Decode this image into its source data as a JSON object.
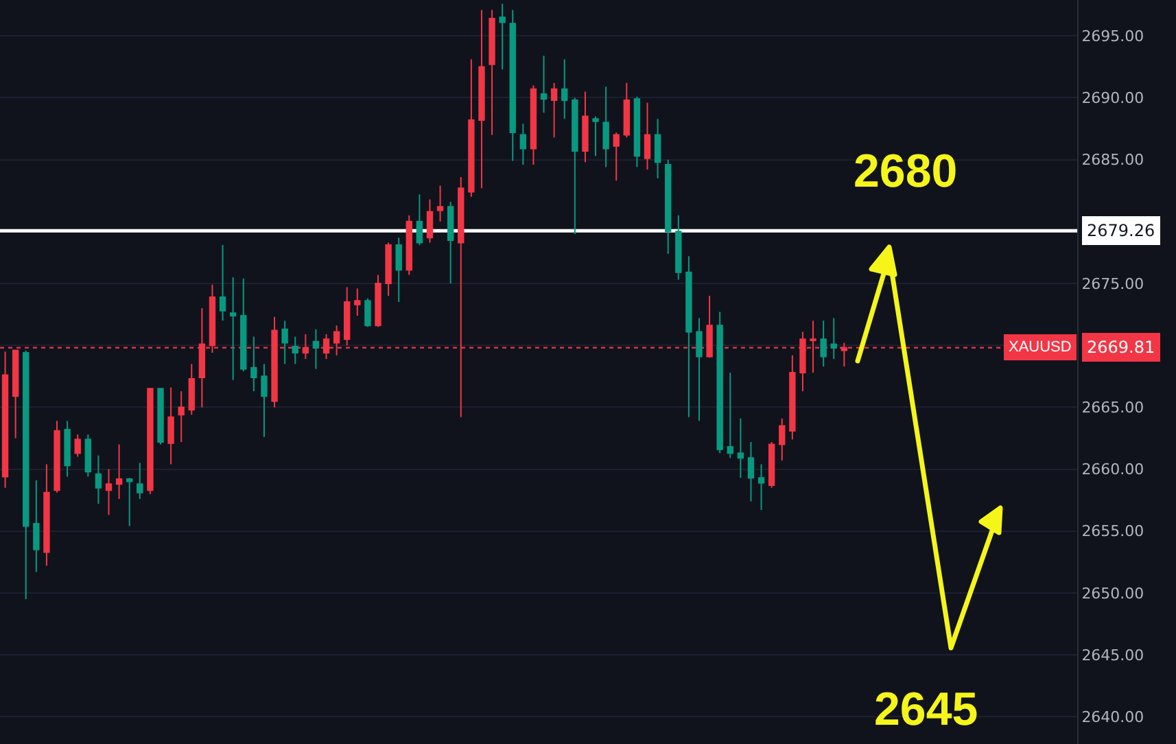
{
  "chart_data": {
    "type": "candlestick",
    "categories": [
      null,
      null,
      null,
      null,
      null,
      null,
      null,
      null,
      null,
      null,
      null,
      null,
      null,
      null,
      null,
      null,
      null,
      null,
      null,
      null,
      null,
      null,
      null,
      null,
      null,
      null,
      null,
      null,
      null,
      null,
      null,
      null,
      null,
      null,
      null,
      null,
      null,
      null,
      null,
      null,
      null,
      null,
      null,
      null,
      null,
      null,
      null,
      null,
      null,
      null,
      null,
      null,
      null,
      null,
      null,
      null,
      null,
      null,
      null,
      null,
      null,
      null,
      null,
      null,
      null,
      null,
      null,
      null,
      null,
      null,
      null,
      null,
      null,
      null,
      null,
      null,
      null,
      null,
      null,
      null,
      null,
      null,
      null,
      null,
      null,
      null,
      null,
      null,
      null,
      null,
      null,
      null,
      null,
      null,
      null,
      null,
      null,
      null,
      null,
      null,
      null,
      null,
      null,
      null
    ],
    "ohlc": [
      [
        2659.4,
        2669.5,
        2658.5,
        2667.6
      ],
      [
        2665.9,
        2669.6,
        2662.5,
        2669.6
      ],
      [
        2669.4,
        2669.6,
        2649.5,
        2655.4
      ],
      [
        2655.6,
        2659.1,
        2651.7,
        2653.5
      ],
      [
        2653.3,
        2660.4,
        2652.2,
        2658.1
      ],
      [
        2658.3,
        2663.9,
        2658.1,
        2663.1
      ],
      [
        2663.2,
        2663.9,
        2659.4,
        2660.3
      ],
      [
        2661.3,
        2662.8,
        2661.0,
        2662.4
      ],
      [
        2662.4,
        2662.8,
        2659.4,
        2659.8
      ],
      [
        2659.6,
        2661.1,
        2657.2,
        2658.5
      ],
      [
        2658.3,
        2660.0,
        2656.3,
        2658.8
      ],
      [
        2658.8,
        2662.0,
        2657.6,
        2659.2
      ],
      [
        2659.2,
        2659.3,
        2655.4,
        2659.0
      ],
      [
        2658.8,
        2660.5,
        2657.6,
        2658.1
      ],
      [
        2658.3,
        2666.5,
        2658.0,
        2666.5
      ],
      [
        2666.5,
        2666.5,
        2662.0,
        2662.2
      ],
      [
        2662.1,
        2666.6,
        2660.4,
        2664.2
      ],
      [
        2664.4,
        2666.3,
        2662.2,
        2665.0
      ],
      [
        2664.8,
        2668.5,
        2664.4,
        2667.3
      ],
      [
        2667.4,
        2673.0,
        2665.0,
        2670.1
      ],
      [
        2670.0,
        2674.9,
        2669.4,
        2673.9
      ],
      [
        2673.9,
        2678.1,
        2672.0,
        2672.8
      ],
      [
        2672.6,
        2675.5,
        2667.2,
        2672.4
      ],
      [
        2672.4,
        2675.4,
        2667.9,
        2668.1
      ],
      [
        2668.2,
        2670.7,
        2666.3,
        2667.4
      ],
      [
        2667.5,
        2668.5,
        2662.6,
        2665.9
      ],
      [
        2665.5,
        2672.3,
        2665.0,
        2671.2
      ],
      [
        2671.3,
        2672.0,
        2668.5,
        2670.2
      ],
      [
        2669.9,
        2670.7,
        2668.5,
        2669.4
      ],
      [
        2669.4,
        2670.9,
        2668.9,
        2669.8
      ],
      [
        2670.3,
        2671.3,
        2668.1,
        2669.8
      ],
      [
        2669.4,
        2670.9,
        2668.9,
        2670.5
      ],
      [
        2670.2,
        2671.6,
        2669.2,
        2671.1
      ],
      [
        2670.5,
        2674.7,
        2670.0,
        2673.5
      ],
      [
        2673.3,
        2674.6,
        2672.4,
        2673.6
      ],
      [
        2673.6,
        2673.8,
        2671.5,
        2671.6
      ],
      [
        2671.6,
        2675.7,
        2671.5,
        2675.0
      ],
      [
        2675.0,
        2678.3,
        2674.0,
        2678.1
      ],
      [
        2678.1,
        2678.7,
        2673.5,
        2676.1
      ],
      [
        2676.1,
        2680.5,
        2675.7,
        2680.0
      ],
      [
        2680.0,
        2682.2,
        2678.1,
        2678.3
      ],
      [
        2678.7,
        2681.8,
        2678.3,
        2680.8
      ],
      [
        2680.9,
        2682.9,
        2680.0,
        2681.2
      ],
      [
        2681.2,
        2681.6,
        2675.0,
        2678.5
      ],
      [
        2678.3,
        2683.6,
        2664.2,
        2682.7
      ],
      [
        2682.4,
        2693.1,
        2682.0,
        2688.2
      ],
      [
        2688.2,
        2697.1,
        2682.7,
        2692.5
      ],
      [
        2692.7,
        2697.1,
        2687.0,
        2696.4
      ],
      [
        2696.5,
        2697.6,
        2692.3,
        2696.1
      ],
      [
        2696.0,
        2697.1,
        2684.9,
        2687.2
      ],
      [
        2687.0,
        2687.9,
        2684.6,
        2685.9
      ],
      [
        2685.9,
        2691.0,
        2684.6,
        2690.7
      ],
      [
        2690.3,
        2693.4,
        2688.8,
        2689.9
      ],
      [
        2689.8,
        2691.2,
        2686.8,
        2690.7
      ],
      [
        2690.7,
        2693.1,
        2688.3,
        2689.8
      ],
      [
        2689.8,
        2690.0,
        2679.0,
        2685.7
      ],
      [
        2685.7,
        2690.5,
        2684.8,
        2688.5
      ],
      [
        2688.3,
        2688.5,
        2685.3,
        2688.1
      ],
      [
        2688.0,
        2690.9,
        2684.4,
        2685.9
      ],
      [
        2686.1,
        2687.2,
        2683.3,
        2687.0
      ],
      [
        2687.0,
        2691.2,
        2686.8,
        2689.8
      ],
      [
        2689.9,
        2690.1,
        2684.4,
        2685.3
      ],
      [
        2685.1,
        2689.6,
        2684.2,
        2687.0
      ],
      [
        2687.0,
        2688.3,
        2683.5,
        2684.8
      ],
      [
        2684.6,
        2685.0,
        2677.4,
        2679.2
      ],
      [
        2679.2,
        2680.5,
        2675.3,
        2675.9
      ],
      [
        2675.9,
        2677.2,
        2664.2,
        2671.1
      ],
      [
        2671.1,
        2672.2,
        2663.9,
        2669.1
      ],
      [
        2669.1,
        2674.0,
        2669.0,
        2671.6
      ],
      [
        2671.6,
        2672.7,
        2661.3,
        2661.6
      ],
      [
        2661.8,
        2667.8,
        2660.9,
        2661.3
      ],
      [
        2661.3,
        2664.1,
        2659.3,
        2660.9
      ],
      [
        2660.9,
        2662.2,
        2657.4,
        2659.3
      ],
      [
        2659.3,
        2660.4,
        2656.7,
        2658.9
      ],
      [
        2658.7,
        2662.2,
        2658.5,
        2662.0
      ],
      [
        2662.0,
        2664.1,
        2660.7,
        2663.5
      ],
      [
        2663.1,
        2669.2,
        2662.4,
        2667.8
      ],
      [
        2667.8,
        2671.1,
        2666.3,
        2670.5
      ],
      [
        2670.4,
        2672.0,
        2667.8,
        2670.5
      ],
      [
        2670.5,
        2672.0,
        2668.3,
        2669.1
      ],
      [
        2670.1,
        2672.2,
        2668.9,
        2669.8
      ],
      [
        2669.6,
        2670.2,
        2668.3,
        2669.8
      ],
      null,
      null,
      null,
      null,
      null,
      null,
      null,
      null,
      null,
      null,
      null,
      null,
      null,
      null,
      null,
      null,
      null,
      null,
      null,
      null,
      null,
      null
    ],
    "colors": [
      "#f23645",
      "#f23645",
      "#089981",
      "#089981",
      "#f23645",
      "#f23645",
      "#089981",
      "#f23645",
      "#089981",
      "#089981",
      "#f23645",
      "#f23645",
      "#089981",
      "#089981",
      "#f23645",
      "#089981",
      "#f23645",
      "#f23645",
      "#f23645",
      "#f23645",
      "#f23645",
      "#089981",
      "#089981",
      "#089981",
      "#089981",
      "#089981",
      "#f23645",
      "#089981",
      "#089981",
      "#f23645",
      "#089981",
      "#f23645",
      "#f23645",
      "#f23645",
      "#f23645",
      "#089981",
      "#f23645",
      "#f23645",
      "#089981",
      "#f23645",
      "#089981",
      "#f23645",
      "#f23645",
      "#089981",
      "#f23645",
      "#f23645",
      "#f23645",
      "#f23645",
      "#089981",
      "#089981",
      "#089981",
      "#f23645",
      "#089981",
      "#f23645",
      "#089981",
      "#089981",
      "#f23645",
      "#089981",
      "#089981",
      "#f23645",
      "#f23645",
      "#089981",
      "#f23645",
      "#089981",
      "#089981",
      "#089981",
      "#089981",
      "#089981",
      "#f23645",
      "#089981",
      "#089981",
      "#089981",
      "#089981",
      "#089981",
      "#f23645",
      "#f23645",
      "#f23645",
      "#f23645",
      "#f23645",
      "#089981",
      "#089981",
      "#f23645",
      null,
      null,
      null,
      null,
      null,
      null,
      null,
      null,
      null,
      null,
      null,
      null,
      null,
      null,
      null,
      null,
      null,
      null,
      null,
      null,
      null,
      null
    ],
    "ylim": [
      2637.8,
      2697.9
    ],
    "yticks": [
      {
        "value": 2640,
        "label": "2640.00"
      },
      {
        "value": 2645,
        "label": "2645.00"
      },
      {
        "value": 2650,
        "label": "2650.00"
      },
      {
        "value": 2655,
        "label": "2655.00"
      },
      {
        "value": 2660,
        "label": "2660.00"
      },
      {
        "value": 2665,
        "label": "2665.00"
      },
      {
        "value": 2670,
        "label": null
      },
      {
        "value": 2675,
        "label": "2675.00"
      },
      {
        "value": 2685,
        "label": "2685.00"
      },
      {
        "value": 2690,
        "label": "2690.00"
      },
      {
        "value": 2695,
        "label": "2695.00"
      }
    ],
    "grid": "y",
    "tick_labels": "y",
    "ref_lines": [
      {
        "axis": "y",
        "value": 2679.26,
        "label": "2679.26",
        "color": "#ffffff",
        "line_style": "solid"
      },
      {
        "axis": "y",
        "value": 2669.81,
        "label": "2669.81",
        "color": "#f23645",
        "line_style": "dotted"
      }
    ],
    "annotations": [
      "XAUUSD",
      "2680",
      "2645"
    ]
  }
}
